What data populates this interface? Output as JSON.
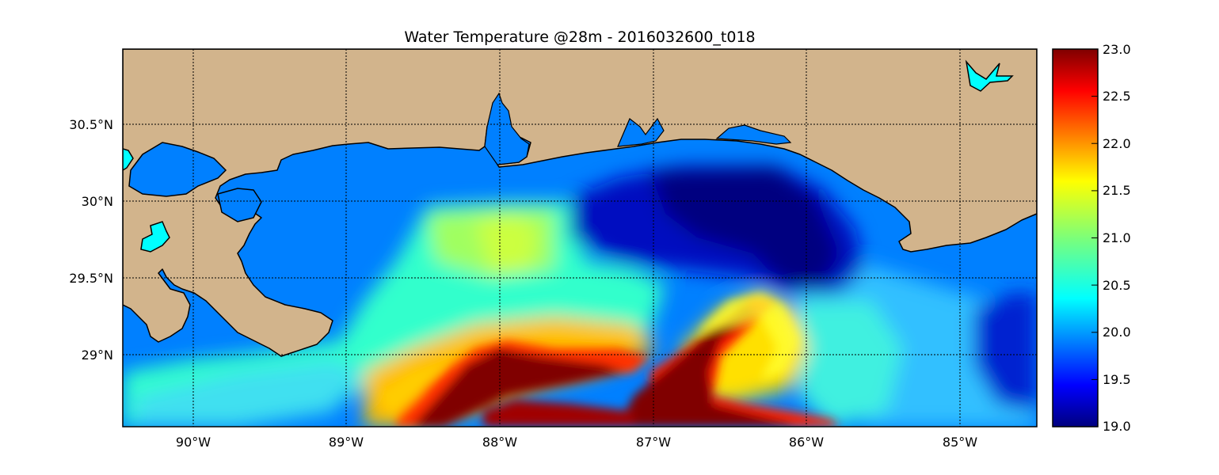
{
  "title": "Water Temperature @28m - 2016032600_t018",
  "map": {
    "lon_range": [
      -90.5,
      -84.5
    ],
    "lat_range": [
      28.55,
      31.0
    ],
    "lon_labels": [
      "90°W",
      "89°W",
      "88°W",
      "87°W",
      "86°W",
      "85°W"
    ],
    "lat_labels": [
      "30.5°N",
      "30°N",
      "29.5°N",
      "29°N"
    ],
    "grid": true,
    "land_color": "#d2b48c",
    "water_default_color": "#0080ff",
    "inland_water_color": "#00ffff"
  },
  "colorbar": {
    "range": [
      19.0,
      23.0
    ],
    "tick_labels": [
      "23.0",
      "22.5",
      "22.0",
      "21.5",
      "21.0",
      "20.5",
      "20.0",
      "19.5",
      "19.0"
    ],
    "colormap": "jet"
  }
}
